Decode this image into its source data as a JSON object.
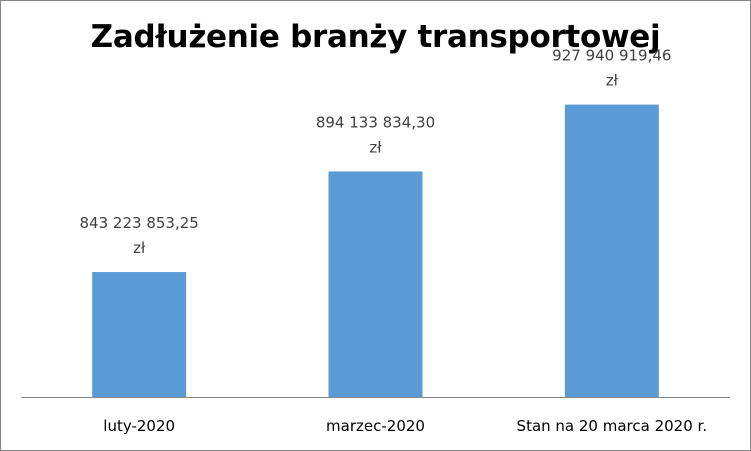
{
  "chart_data": {
    "type": "bar",
    "title": "Zadłużenie branży transportowej",
    "xlabel": "",
    "ylabel": "",
    "categories": [
      "luty-2020",
      "marzec-2020",
      "Stan na 20 marca 2020 r."
    ],
    "values": [
      843223853.25,
      894133834.3,
      927940919.46
    ],
    "data_labels": [
      [
        "843 223 853,25",
        "zł"
      ],
      [
        "894 133 834,30",
        "zł"
      ],
      [
        "927 940 919,46",
        "zł"
      ]
    ],
    "ylim": [
      780000000,
      950000000
    ],
    "grid": false,
    "legend": "none",
    "bar_color": "#5B9BD5",
    "axis_color": "#868686"
  }
}
